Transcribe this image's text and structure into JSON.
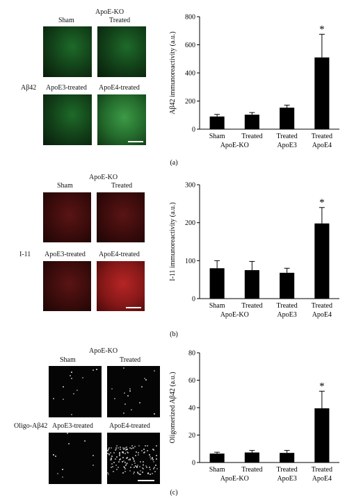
{
  "panels": [
    {
      "caption": "(a)",
      "micro_header": "ApoE-KO",
      "micro_labels": [
        "Sham",
        "Treated",
        "ApoE3-treated",
        "ApoE4-treated"
      ],
      "side_label": "Aβ42",
      "chart_data": {
        "type": "bar",
        "categories": [
          "Sham",
          "Treated",
          "Treated",
          "Treated"
        ],
        "category_sublabels": [
          "",
          "",
          "ApoE3",
          "ApoE4"
        ],
        "group_label": "ApoE-KO",
        "values": [
          90,
          103,
          153,
          510
        ],
        "errors": [
          15,
          15,
          18,
          165
        ],
        "significance": [
          "",
          "",
          "",
          "*"
        ],
        "ylabel": "Aβ42 immunoreactivity (a.u.)",
        "ylim": [
          0,
          800
        ],
        "yticks": [
          0,
          200,
          400,
          600,
          800
        ],
        "grid": false
      }
    },
    {
      "caption": "(b)",
      "micro_header": "ApoE-KO",
      "micro_labels": [
        "Sham",
        "Treated",
        "ApoE3-treated",
        "ApoE4-treated"
      ],
      "side_label": "I-11",
      "chart_data": {
        "type": "bar",
        "categories": [
          "Sham",
          "Treated",
          "Treated",
          "Treated"
        ],
        "category_sublabels": [
          "",
          "",
          "ApoE3",
          "ApoE4"
        ],
        "group_label": "ApoE-KO",
        "values": [
          80,
          75,
          68,
          198
        ],
        "errors": [
          20,
          23,
          12,
          42
        ],
        "significance": [
          "",
          "",
          "",
          "*"
        ],
        "ylabel": "I-11 immunoreactivity (a.u.)",
        "ylim": [
          0,
          300
        ],
        "yticks": [
          0,
          100,
          200,
          300
        ],
        "grid": false
      }
    },
    {
      "caption": "(c)",
      "micro_header": "ApoE-KO",
      "micro_labels": [
        "Sham",
        "Treated",
        "ApoE3-treated",
        "ApoE4-treated"
      ],
      "side_label": "Oligo-Aβ42",
      "chart_data": {
        "type": "bar",
        "categories": [
          "Sham",
          "Treated",
          "Treated",
          "Treated"
        ],
        "category_sublabels": [
          "",
          "",
          "ApoE3",
          "ApoE4"
        ],
        "group_label": "ApoE-KO",
        "values": [
          6.5,
          7.3,
          7.0,
          39.5
        ],
        "errors": [
          1.0,
          1.5,
          1.8,
          12.5
        ],
        "significance": [
          "",
          "",
          "",
          "*"
        ],
        "ylabel": "Oligomerized Aβ42 (a.u.)",
        "ylim": [
          0,
          80
        ],
        "yticks": [
          0,
          20,
          40,
          60,
          80
        ],
        "grid": false
      }
    }
  ]
}
